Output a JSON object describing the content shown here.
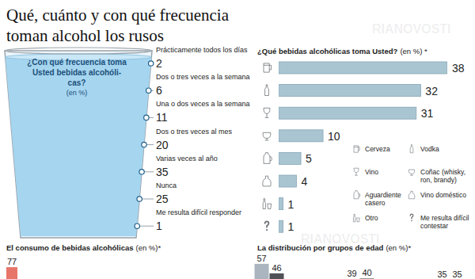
{
  "title": "Qué, cuánto y con qué frecuencia\ntoman alcohol los rusos",
  "watermark": "RIANOVOSTI",
  "chart_data": [
    {
      "type": "list",
      "title": [
        "¿Con qué frecuencia toma",
        "Usted bebidas alcohóli-",
        "cas?"
      ],
      "subtitle": "(en %)",
      "categories": [
        "Prácticamente todos los días",
        "Dos o tres veces a la semana",
        "Una o dos veces a la semana",
        "Dos o tres veces al mes",
        "Varias veces al año",
        "Nunca",
        "Me resulta difícil responder"
      ],
      "values": [
        2,
        6,
        11,
        20,
        35,
        25,
        1
      ],
      "data_labels": true
    },
    {
      "type": "bar",
      "orientation": "horizontal",
      "title": "¿Qué bebidas alcohólicas toma Usted?",
      "subtitle": "(en %) *",
      "categories": [
        "Cerveza",
        "Vodka",
        "Vino",
        "Coñac (whisky, ron, brandy)",
        "Aguardiente casero",
        "Vino doméstico",
        "Otro",
        "Me resulta difícil contestar"
      ],
      "values": [
        38,
        32,
        31,
        10,
        5,
        4,
        1,
        1
      ],
      "xlim": [
        0,
        38
      ],
      "color": "#a9c5d2",
      "data_labels": true,
      "tick_labels": false,
      "legend": "bottom right"
    },
    {
      "type": "bar",
      "title": "El consumo de bebidas alcohólicas",
      "subtitle": "(en %)*",
      "categories": [
        null
      ],
      "values": [
        77
      ],
      "ylim": [
        0,
        100
      ],
      "color": "#e8756a",
      "data_labels": true,
      "tick_labels": false
    },
    {
      "type": "bar",
      "title": "La distribución por grupos de edad",
      "subtitle": "(en %)*",
      "categories": [
        null,
        null,
        null
      ],
      "series": [
        {
          "values": [
            57,
            39,
            35
          ],
          "color": "#aab5bf"
        },
        {
          "values": [
            46,
            40,
            35
          ],
          "color": "#505257"
        }
      ],
      "ylim": [
        0,
        100
      ],
      "data_labels": true,
      "tick_labels": false
    }
  ]
}
